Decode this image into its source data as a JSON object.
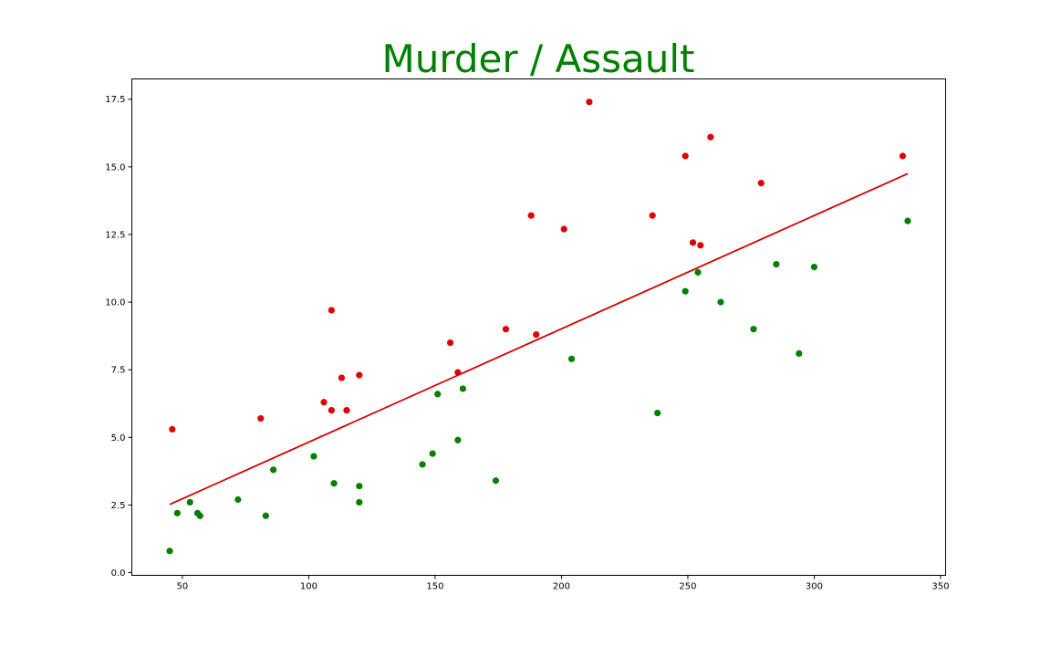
{
  "chart_data": {
    "type": "scatter",
    "title": "Murder / Assault",
    "xlabel": "",
    "ylabel": "",
    "xlim": [
      30,
      352
    ],
    "ylim": [
      -0.1,
      18.25
    ],
    "xticks": [
      50,
      100,
      150,
      200,
      250,
      300,
      350
    ],
    "yticks": [
      0.0,
      2.5,
      5.0,
      7.5,
      10.0,
      12.5,
      15.0,
      17.5
    ],
    "xtick_labels": [
      "50",
      "100",
      "150",
      "200",
      "250",
      "300",
      "350"
    ],
    "ytick_labels": [
      "0.0",
      "2.5",
      "5.0",
      "7.5",
      "10.0",
      "12.5",
      "15.0",
      "17.5"
    ],
    "grid": false,
    "legend": "none",
    "colors": {
      "title": "#008000",
      "above_line": "#e00000",
      "below_line": "#008000",
      "fit_line": "#d40000"
    },
    "series": [
      {
        "color": "#e00000",
        "points": [
          [
            46,
            5.3
          ],
          [
            81,
            5.7
          ],
          [
            106,
            6.3
          ],
          [
            109,
            6.0
          ],
          [
            109,
            9.7
          ],
          [
            113,
            7.2
          ],
          [
            115,
            6.0
          ],
          [
            120,
            7.3
          ],
          [
            156,
            8.5
          ],
          [
            159,
            7.4
          ],
          [
            178,
            9.0
          ],
          [
            188,
            13.2
          ],
          [
            190,
            8.8
          ],
          [
            201,
            12.7
          ],
          [
            211,
            17.4
          ],
          [
            236,
            13.2
          ],
          [
            249,
            15.4
          ],
          [
            252,
            12.2
          ],
          [
            255,
            12.1
          ],
          [
            259,
            16.1
          ],
          [
            279,
            14.4
          ],
          [
            335,
            15.4
          ]
        ]
      },
      {
        "color": "#008000",
        "points": [
          [
            45,
            0.8
          ],
          [
            48,
            2.2
          ],
          [
            53,
            2.6
          ],
          [
            56,
            2.2
          ],
          [
            57,
            2.1
          ],
          [
            72,
            2.7
          ],
          [
            83,
            2.1
          ],
          [
            86,
            3.8
          ],
          [
            102,
            4.3
          ],
          [
            110,
            3.3
          ],
          [
            120,
            3.2
          ],
          [
            120,
            2.6
          ],
          [
            145,
            4.0
          ],
          [
            149,
            4.4
          ],
          [
            151,
            6.6
          ],
          [
            159,
            4.9
          ],
          [
            161,
            6.8
          ],
          [
            174,
            3.4
          ],
          [
            204,
            7.9
          ],
          [
            238,
            5.9
          ],
          [
            249,
            10.4
          ],
          [
            254,
            11.1
          ],
          [
            263,
            10.0
          ],
          [
            276,
            9.0
          ],
          [
            285,
            11.4
          ],
          [
            294,
            8.1
          ],
          [
            300,
            11.3
          ],
          [
            337,
            13.0
          ]
        ]
      }
    ],
    "fit_line": {
      "x": [
        45,
        337
      ],
      "y": [
        2.52,
        14.75
      ]
    }
  }
}
